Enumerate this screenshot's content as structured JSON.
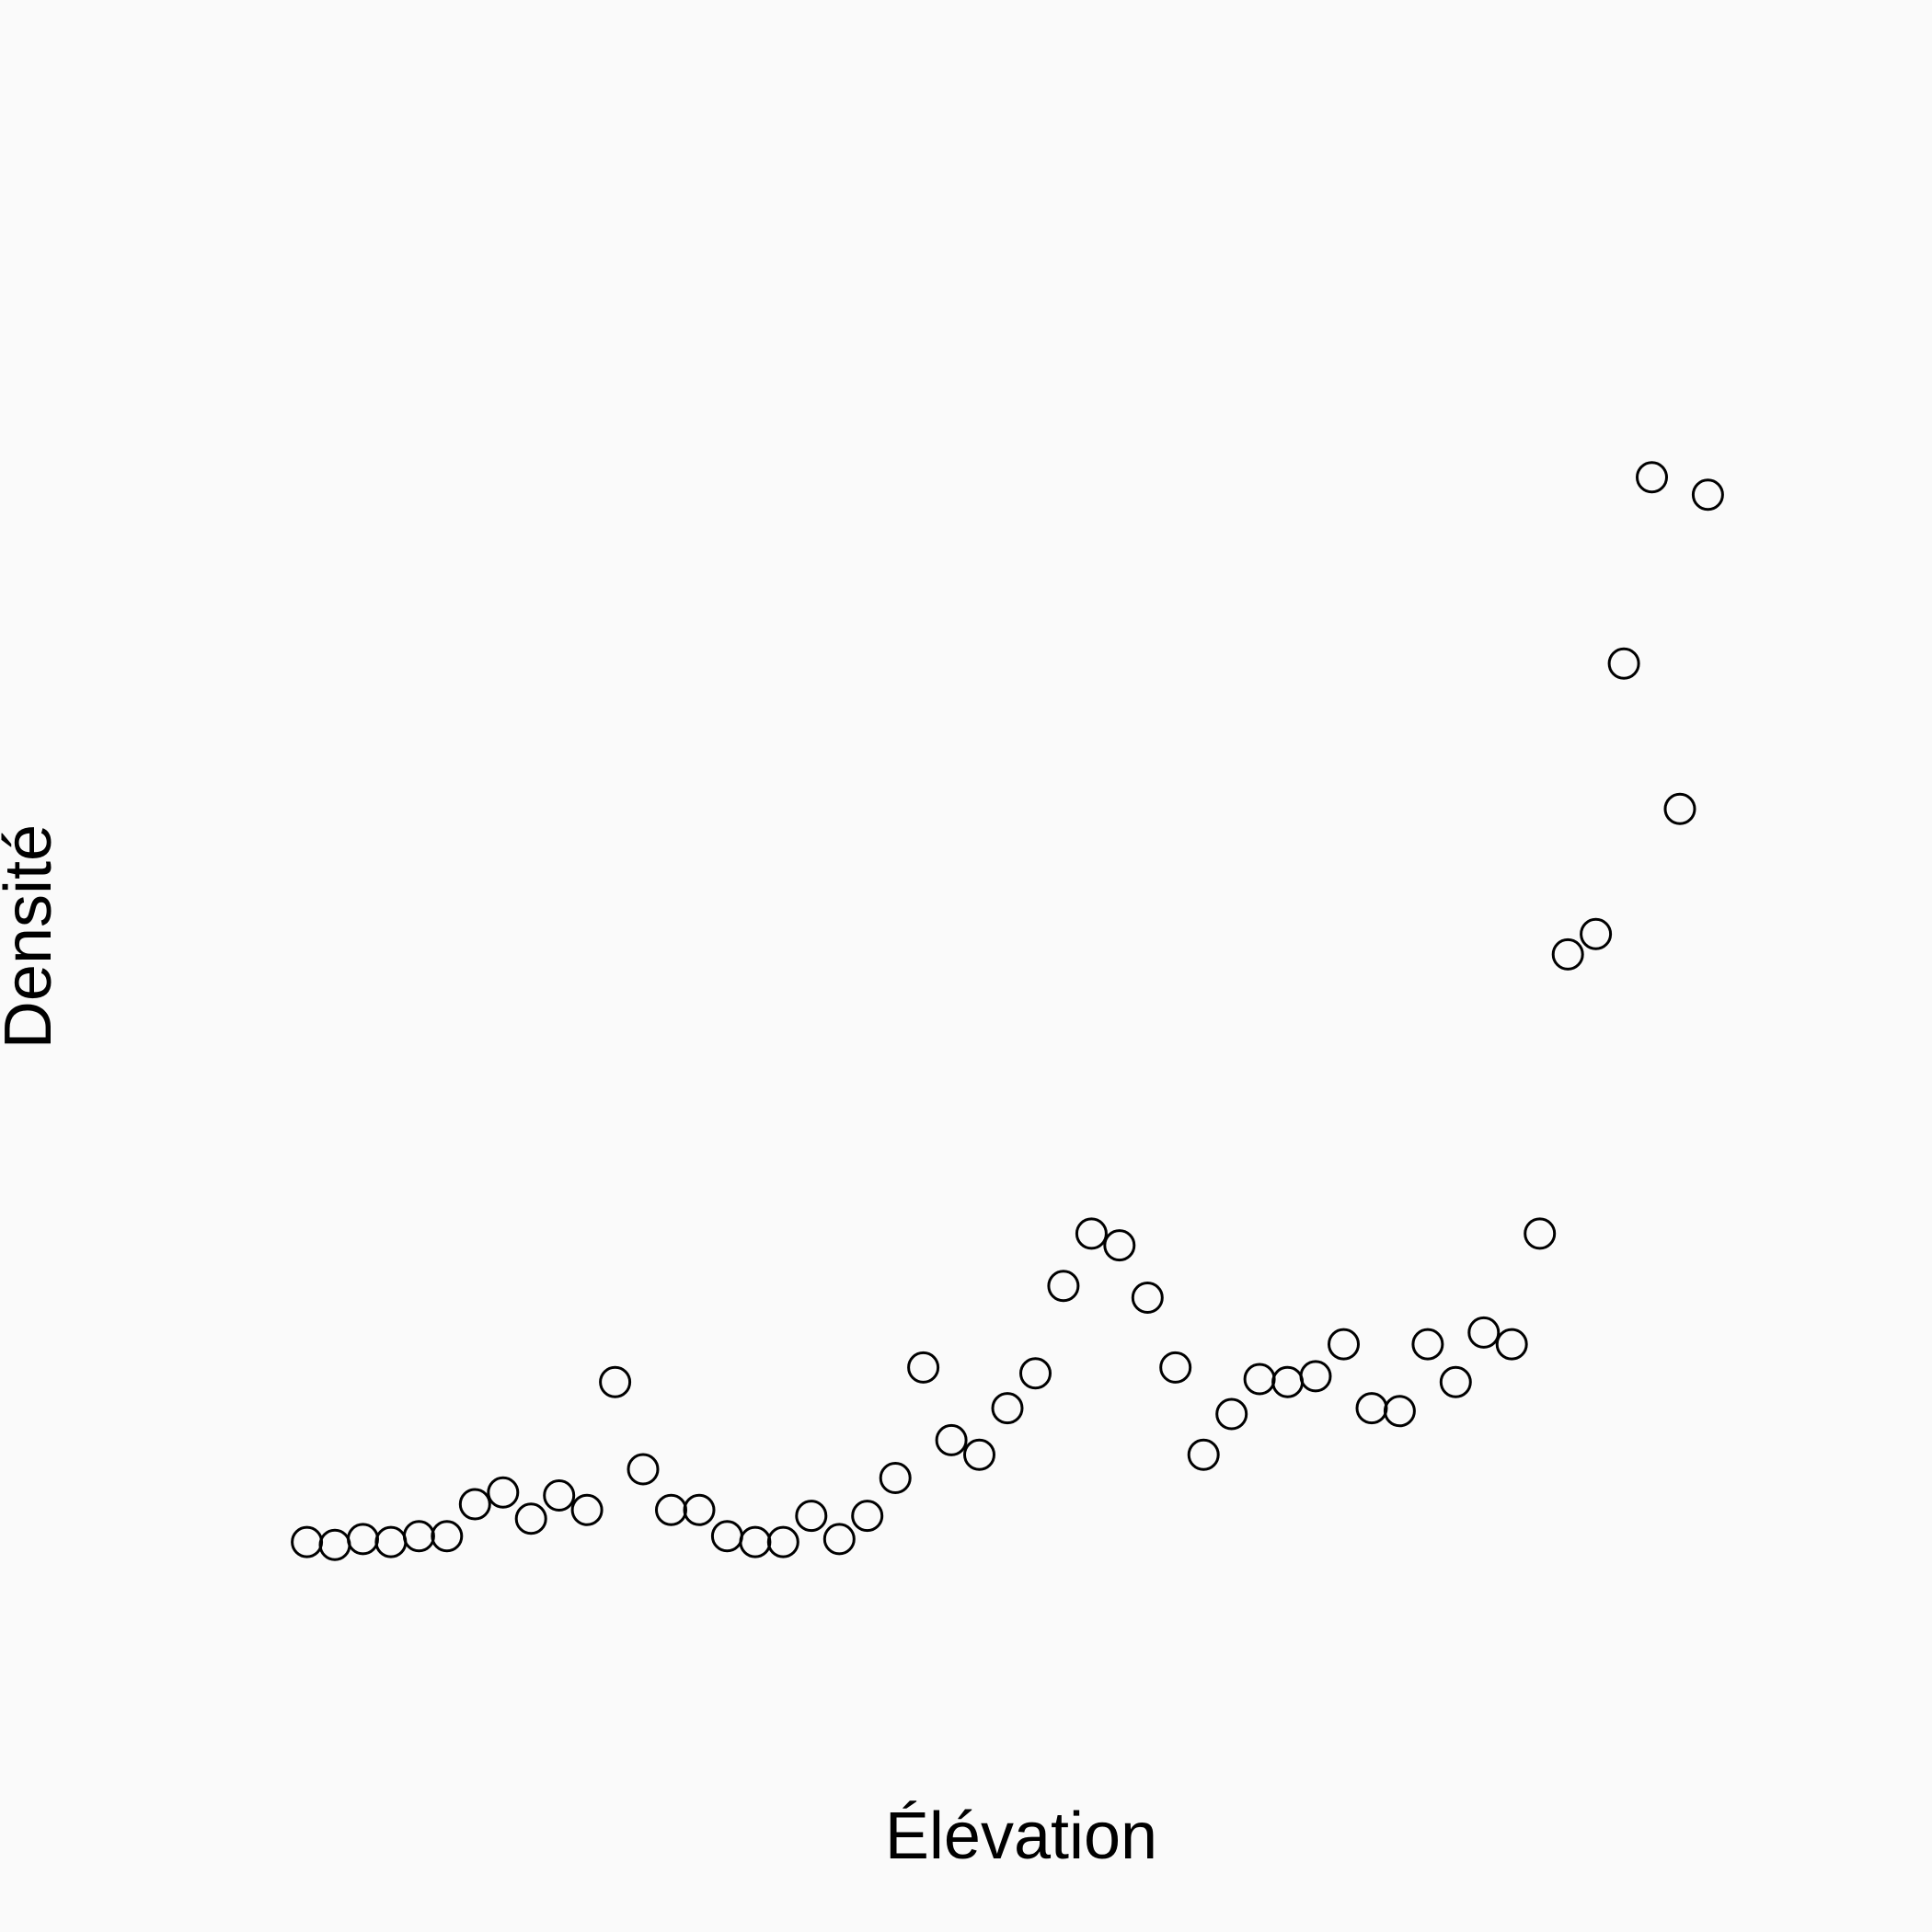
{
  "chart_data": {
    "type": "scatter",
    "title": "",
    "xlabel": "Élévation",
    "ylabel": "Densité",
    "grid": false,
    "legend": "none",
    "axes_shown": false,
    "x": [
      1,
      2,
      3,
      4,
      5,
      6,
      7,
      8,
      9,
      10,
      11,
      12,
      13,
      14,
      15,
      16,
      17,
      18,
      19,
      20,
      21,
      22,
      23,
      24,
      25,
      26,
      27,
      28,
      29,
      30,
      31,
      32,
      33,
      34,
      35,
      36,
      37,
      38,
      39,
      40,
      41,
      42,
      43,
      44,
      45,
      46,
      47,
      48,
      49,
      50,
      51
    ],
    "y": [
      0.15,
      0.14,
      0.16,
      0.15,
      0.17,
      0.17,
      0.28,
      0.32,
      0.23,
      0.31,
      0.26,
      0.7,
      0.4,
      0.26,
      0.26,
      0.17,
      0.15,
      0.15,
      0.24,
      0.16,
      0.24,
      0.37,
      0.75,
      0.5,
      0.45,
      0.61,
      0.73,
      1.03,
      1.21,
      1.17,
      0.99,
      0.75,
      0.45,
      0.59,
      0.71,
      0.7,
      0.72,
      0.83,
      0.61,
      0.6,
      0.83,
      0.7,
      0.87,
      0.83,
      1.21,
      2.17,
      2.24,
      3.17,
      3.81,
      2.67,
      3.75
    ],
    "xlim": [
      -2.4,
      54.4
    ],
    "ylim": [
      -0.4,
      4.85
    ],
    "colors": {
      "background": "#fafafa",
      "marker": "#000000"
    }
  }
}
